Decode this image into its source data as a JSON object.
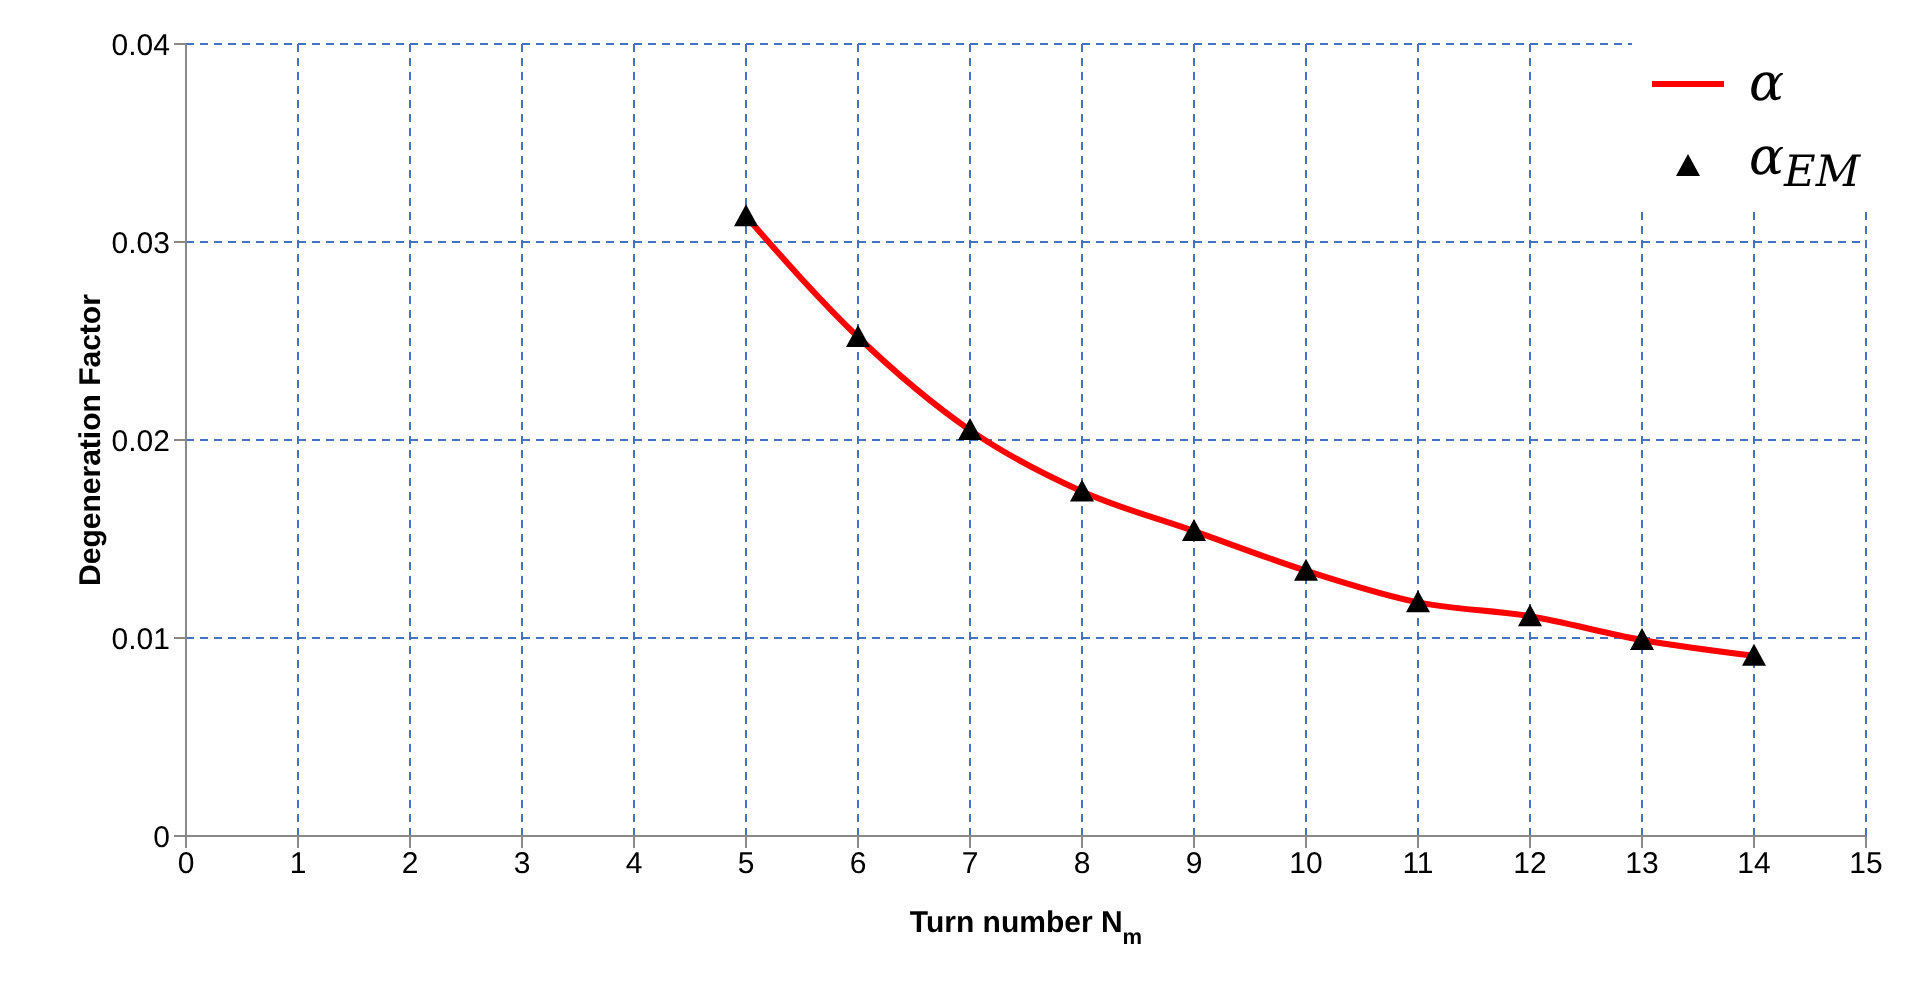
{
  "chart_data": {
    "type": "line",
    "xlabel": "Turn number N$_{m}$",
    "ylabel": "Degeneration Factor",
    "x": [
      5,
      6,
      7,
      8,
      9,
      10,
      11,
      12,
      13,
      14
    ],
    "series": [
      {
        "name": "α",
        "color": "#ff0000",
        "marker": "none",
        "values": [
          0.0313,
          0.0252,
          0.0205,
          0.0174,
          0.0154,
          0.0134,
          0.0118,
          0.0111,
          0.0099,
          0.0091
        ]
      },
      {
        "name": "α$_{EM}$",
        "type": "scatter",
        "color": "#000000",
        "marker": "triangle",
        "values": [
          0.0313,
          0.0252,
          0.0205,
          0.0174,
          0.0154,
          0.0134,
          0.0118,
          0.0111,
          0.0099,
          0.0091
        ]
      }
    ],
    "xlim": [
      0,
      15
    ],
    "xticks": [
      0,
      1,
      2,
      3,
      4,
      5,
      6,
      7,
      8,
      9,
      10,
      11,
      12,
      13,
      14,
      15
    ],
    "ylim": [
      0,
      0.04
    ],
    "yticks": [
      0,
      0.01,
      0.02,
      0.03,
      0.04
    ],
    "grid": true,
    "legend": "top right"
  }
}
